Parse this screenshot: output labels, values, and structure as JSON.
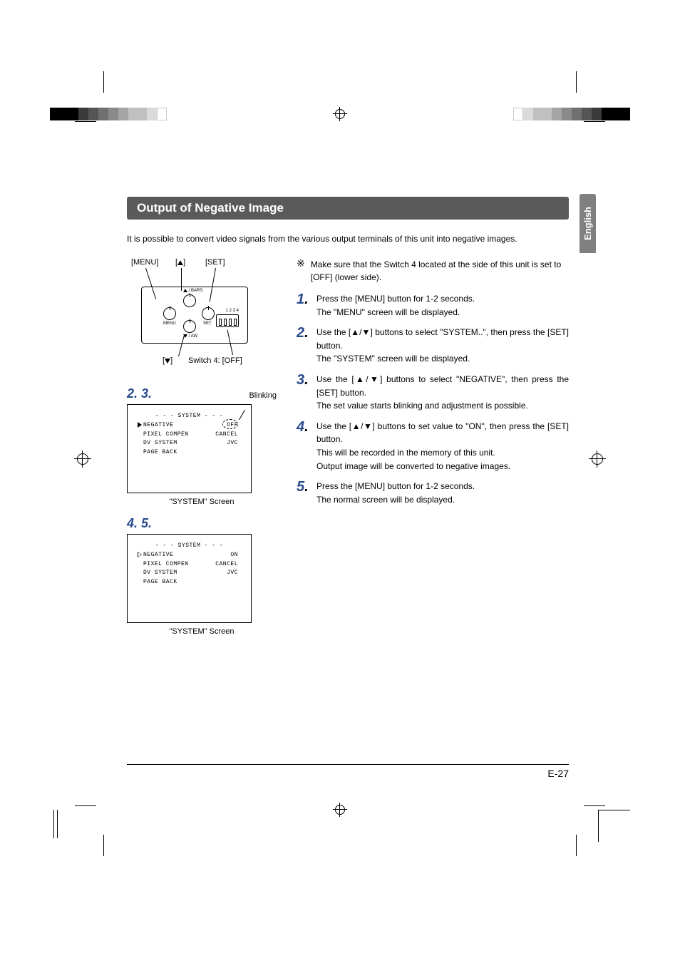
{
  "title": "Output of Negative Image",
  "intro": "It is possible to convert video signals from the various output terminals of this unit into negative images.",
  "lang_tab": "English",
  "diagram": {
    "label_menu": "[MENU]",
    "label_up": "[▲]",
    "label_set": "[SET]",
    "label_down": "[▼]",
    "label_sw4": "Switch 4: [OFF]",
    "mini_bars": "/ BARS",
    "mini_menu": "MENU",
    "mini_set": "SET",
    "mini_aw": "/ AW",
    "mini_1234": "1 2 3 4",
    "up_glyph": "▲",
    "down_glyph": "▼"
  },
  "step_group_a": "2. 3.",
  "blinking_label": "Blinking",
  "screen1": {
    "heading": "- - -   SYSTEM   - - -",
    "rows": [
      {
        "label": "NEGATIVE",
        "value": "OFF",
        "cursor": true,
        "blink": true
      },
      {
        "label": "PIXEL  COMPEN",
        "value": "CANCEL"
      },
      {
        "label": "DV SYSTEM",
        "value": "JVC"
      },
      {
        "label": "PAGE  BACK",
        "value": ""
      }
    ],
    "caption": "\"SYSTEM\" Screen"
  },
  "step_group_b": "4. 5.",
  "screen2": {
    "heading": "- - -   SYSTEM   - - -",
    "rows": [
      {
        "label": "NEGATIVE",
        "value": "ON",
        "cursor": true
      },
      {
        "label": "PIXEL  COMPEN",
        "value": "CANCEL"
      },
      {
        "label": "DV SYSTEM",
        "value": "JVC"
      },
      {
        "label": "PAGE  BACK",
        "value": ""
      }
    ],
    "caption": "\"SYSTEM\" Screen"
  },
  "note": "Make sure that the Switch 4 located at the side of this unit is set to [OFF] (lower side).",
  "steps": [
    {
      "n": "1",
      "lines": [
        "Press the [MENU] button for 1-2 seconds.",
        "The \"MENU\" screen will be displayed."
      ]
    },
    {
      "n": "2",
      "lines": [
        "Use the [▲/▼] buttons to select \"SYSTEM..\", then press the [SET] button.",
        "The \"SYSTEM\" screen will be displayed."
      ]
    },
    {
      "n": "3",
      "lines": [
        "Use the [▲/▼] buttons to select \"NEGATIVE\", then press the [SET] button.",
        "The set value starts blinking and adjustment is possible."
      ]
    },
    {
      "n": "4",
      "lines": [
        "Use the [▲/▼] buttons to set value to \"ON\", then press the [SET] button.",
        "This will be recorded in the memory of this unit.",
        "Output image will be converted to negative images."
      ]
    },
    {
      "n": "5",
      "lines": [
        "Press the [MENU] button for 1-2 seconds.",
        "The normal screen will be displayed."
      ]
    }
  ],
  "page_num": "E-27",
  "reg_colors": [
    "#000000",
    "#404040",
    "#606060",
    "#808080",
    "#a0a0a0",
    "#c0c0c0",
    "#e0e0e0"
  ]
}
